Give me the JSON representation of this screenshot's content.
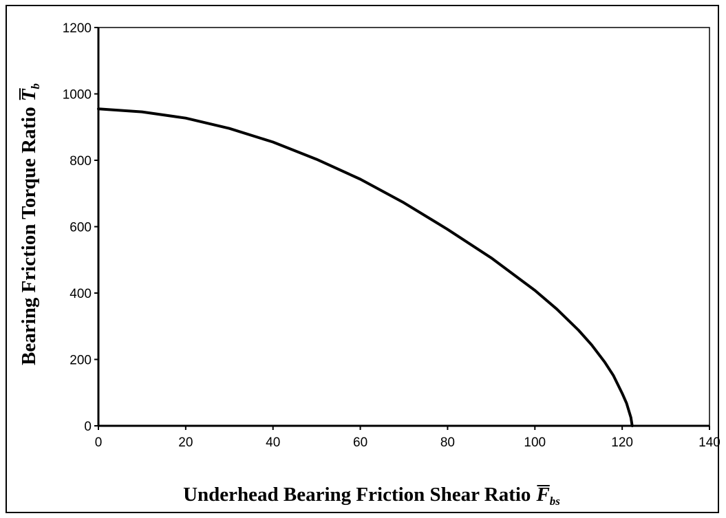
{
  "chart_data": {
    "type": "line",
    "title": "",
    "xlabel": "Underhead Bearing Friction Shear Ratio",
    "xlabel_symbol": "F",
    "xlabel_subscript": "bs",
    "ylabel": "Bearing Friction Torque Ratio",
    "ylabel_symbol": "T",
    "ylabel_subscript": "b",
    "xlim": [
      0,
      140
    ],
    "ylim": [
      0,
      1200
    ],
    "xticks": [
      "0",
      "20",
      "40",
      "60",
      "80",
      "100",
      "120",
      "140"
    ],
    "yticks": [
      "0",
      "200",
      "400",
      "600",
      "800",
      "1000",
      "1200"
    ],
    "grid": false,
    "legend": "none",
    "series": [
      {
        "color": "#000000",
        "x": [
          0,
          10,
          20,
          30,
          40,
          50,
          60,
          70,
          80,
          90,
          100,
          105,
          110,
          113,
          116,
          118,
          120,
          121,
          122,
          122.3
        ],
        "y": [
          955,
          946,
          927,
          896,
          855,
          803,
          743,
          672,
          592,
          506,
          408,
          352,
          288,
          244,
          192,
          151,
          98,
          68,
          25,
          0
        ]
      }
    ]
  }
}
